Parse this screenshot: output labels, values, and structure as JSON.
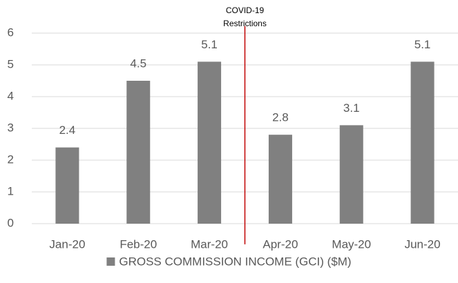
{
  "chart_data": {
    "type": "bar",
    "categories": [
      "Jan-20",
      "Feb-20",
      "Mar-20",
      "Apr-20",
      "May-20",
      "Jun-20"
    ],
    "series": [
      {
        "name": "GROSS COMMISSION INCOME (GCI) ($M)",
        "color": "#808080",
        "values": [
          2.4,
          4.5,
          5.1,
          2.8,
          3.1,
          5.1
        ]
      }
    ],
    "ylim": [
      0,
      6
    ],
    "yticks": [
      0,
      1,
      2,
      3,
      4,
      5,
      6
    ],
    "grid": true,
    "annotation": [
      "COVID-19",
      "Restrictions"
    ],
    "annotation_color": "#c00000",
    "legend": "bottom"
  }
}
